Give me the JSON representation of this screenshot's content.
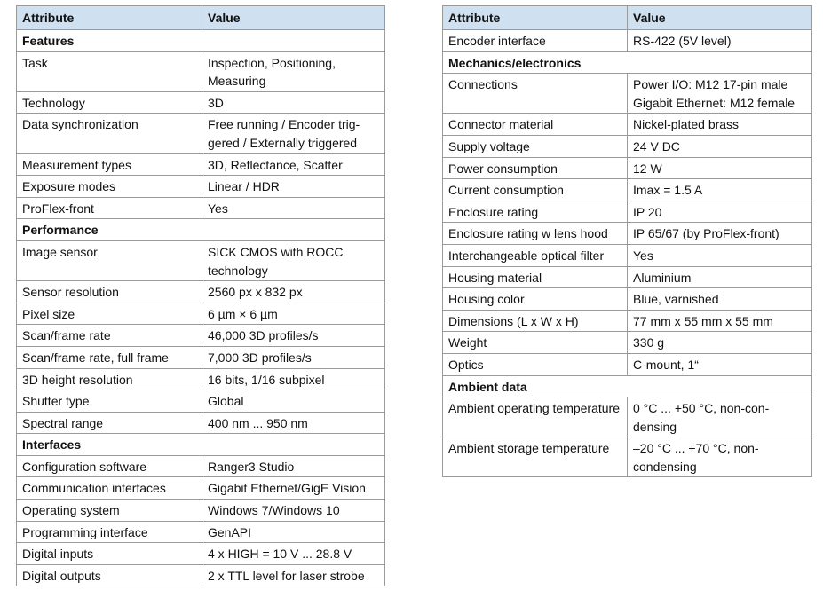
{
  "tables": [
    {
      "header": [
        "Attribute",
        "Value"
      ],
      "rows": [
        {
          "section": "Features"
        },
        {
          "attribute": "Task",
          "value": "Inspection, Positioning, Measuring"
        },
        {
          "attribute": "Technology",
          "value": "3D"
        },
        {
          "attribute": "Data synchronization",
          "value": "Free running / Encoder trig­gered / Externally triggered"
        },
        {
          "attribute": "Measurement types",
          "value": "3D, Reflectance, Scatter"
        },
        {
          "attribute": "Exposure modes",
          "value": "Linear / HDR"
        },
        {
          "attribute": "ProFlex-front",
          "value": "Yes"
        },
        {
          "section": "Performance"
        },
        {
          "attribute": "Image sensor",
          "value": "SICK CMOS with ROCC technology"
        },
        {
          "attribute": "Sensor resolution",
          "value": "2560 px x 832 px"
        },
        {
          "attribute": "Pixel size",
          "value": "6 µm × 6 µm"
        },
        {
          "attribute": "Scan/frame rate",
          "value": "46,000 3D profiles/s"
        },
        {
          "attribute": "Scan/frame rate, full frame",
          "value": "7,000 3D profiles/s"
        },
        {
          "attribute": "3D height resolution",
          "value": "16 bits, 1/16 subpixel"
        },
        {
          "attribute": "Shutter type",
          "value": "Global"
        },
        {
          "attribute": "Spectral range",
          "value": "400 nm ... 950 nm"
        },
        {
          "section": "Interfaces"
        },
        {
          "attribute": "Configuration software",
          "value": "Ranger3 Studio"
        },
        {
          "attribute": "Communication interfaces",
          "value": "Gigabit Ethernet/GigE Vision"
        },
        {
          "attribute": "Operating system",
          "value": "Windows 7/Windows 10"
        },
        {
          "attribute": "Programming interface",
          "value": "GenAPI"
        },
        {
          "attribute": "Digital inputs",
          "value": "4 x HIGH = 10 V ... 28.8 V"
        },
        {
          "attribute": "Digital outputs",
          "value": "2 x TTL level for laser strobe"
        }
      ]
    },
    {
      "header": [
        "Attribute",
        "Value"
      ],
      "rows": [
        {
          "attribute": "Encoder interface",
          "value": "RS-422 (5V level)"
        },
        {
          "section": "Mechanics/electronics"
        },
        {
          "attribute": "Connections",
          "value": "Power I/O: M12 17-pin male Gigabit Ethernet: M12 female"
        },
        {
          "attribute": "Connector material",
          "value": "Nickel-plated brass"
        },
        {
          "attribute": "Supply voltage",
          "value": "24 V DC"
        },
        {
          "attribute": "Power consumption",
          "value": "12 W"
        },
        {
          "attribute": "Current consumption",
          "value": "Imax = 1.5 A"
        },
        {
          "attribute": "Enclosure rating",
          "value": "IP 20"
        },
        {
          "attribute": "Enclosure rating w lens hood",
          "value": "IP 65/67 (by ProFlex-front)"
        },
        {
          "attribute": "Interchangeable optical filter",
          "value": "Yes"
        },
        {
          "attribute": "Housing material",
          "value": "Aluminium"
        },
        {
          "attribute": "Housing color",
          "value": "Blue, varnished"
        },
        {
          "attribute": "Dimensions (L x W x H)",
          "value": "77 mm x 55 mm x 55 mm"
        },
        {
          "attribute": "Weight",
          "value": "330 g"
        },
        {
          "attribute": "Optics",
          "value": "C-mount, 1“"
        },
        {
          "section": "Ambient data"
        },
        {
          "attribute": "Ambient operating tempe­rature",
          "value": "0 °C ... +50 °C, non-con­densing"
        },
        {
          "attribute": "Ambient storage tempe­rature",
          "value": "–20 °C ... +70 °C, non-condensing"
        }
      ]
    }
  ]
}
